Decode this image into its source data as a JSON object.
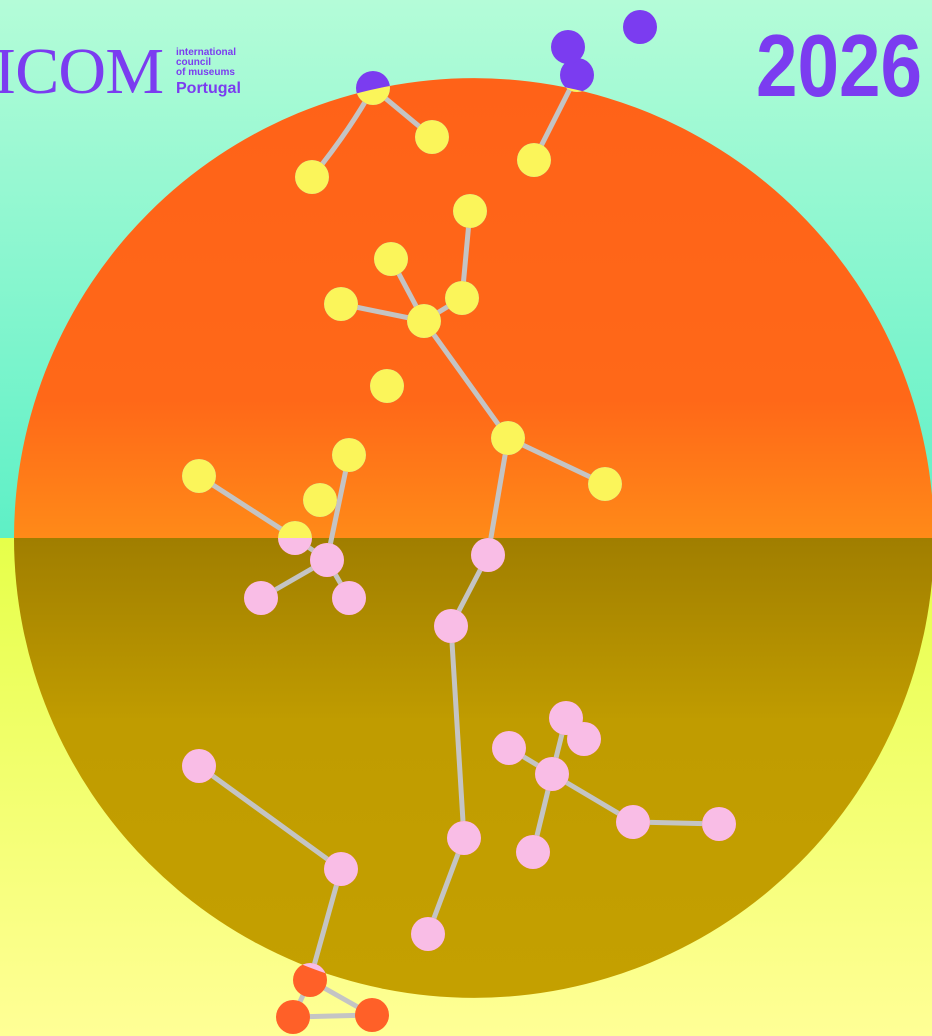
{
  "logo": {
    "name": "ICOM",
    "lines": [
      "international",
      "council",
      "of museums"
    ],
    "region": "Portugal"
  },
  "year": "2026"
}
